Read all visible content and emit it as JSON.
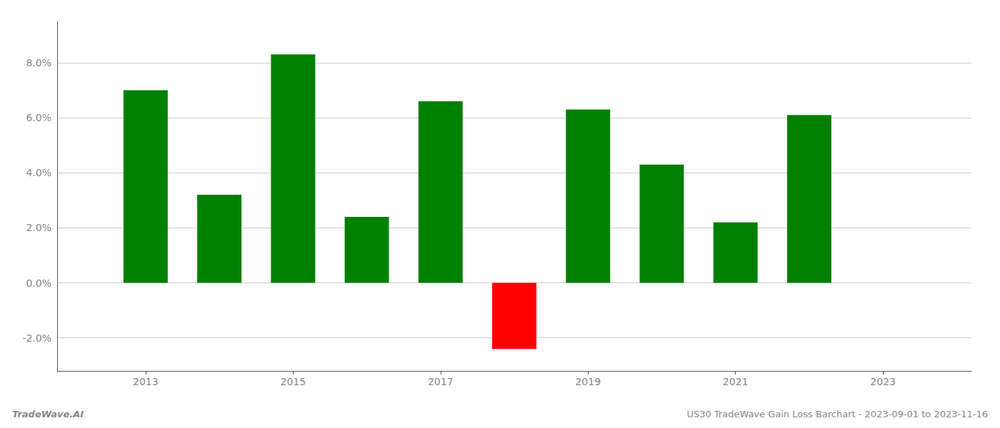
{
  "chart_data": {
    "type": "bar",
    "x": [
      2013,
      2014,
      2015,
      2016,
      2017,
      2018,
      2019,
      2020,
      2021,
      2022,
      2023
    ],
    "values": [
      0.07,
      0.032,
      0.083,
      0.024,
      0.066,
      -0.024,
      0.063,
      0.043,
      0.022,
      0.061,
      null
    ],
    "colors": [
      "#008000",
      "#008000",
      "#008000",
      "#008000",
      "#008000",
      "#ff0000",
      "#008000",
      "#008000",
      "#008000",
      "#008000",
      null
    ],
    "xlim": [
      2011.8,
      2024.2
    ],
    "xticks": [
      2013,
      2015,
      2017,
      2019,
      2021,
      2023
    ],
    "ylim": [
      -0.032,
      0.095
    ],
    "yticks": [
      {
        "value": -0.02,
        "label": "-2.0%"
      },
      {
        "value": 0.0,
        "label": "0.0%"
      },
      {
        "value": 0.02,
        "label": "2.0%"
      },
      {
        "value": 0.04,
        "label": "4.0%"
      },
      {
        "value": 0.06,
        "label": "6.0%"
      },
      {
        "value": 0.08,
        "label": "8.0%"
      }
    ],
    "grid": true,
    "annotations": [
      "TradeWave.AI",
      "US30 TradeWave Gain Loss Barchart - 2023-09-01 to 2023-11-16"
    ]
  }
}
